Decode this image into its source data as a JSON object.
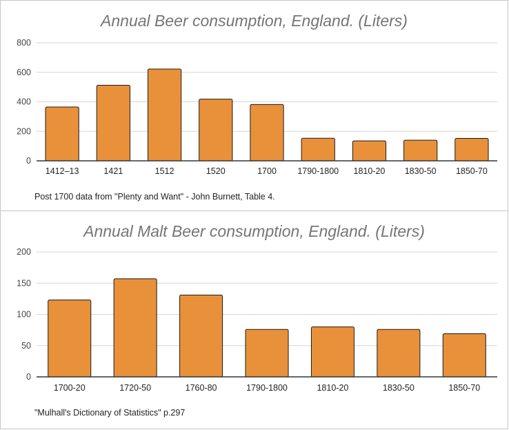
{
  "chart_data": [
    {
      "type": "bar",
      "title": "Annual Beer consumption, England. (Liters)",
      "categories": [
        "1412–13",
        "1421",
        "1512",
        "1520",
        "1700",
        "1790-1800",
        "1810-20",
        "1830-50",
        "1850-70"
      ],
      "values": [
        365,
        512,
        622,
        418,
        382,
        153,
        135,
        140,
        152
      ],
      "yticks": [
        0,
        200,
        400,
        600,
        800
      ],
      "ylim": [
        0,
        800
      ],
      "grid": true,
      "legend": "none",
      "bar_color": "#e8913a",
      "note": "Post 1700 data from \"Plenty and Want\" -  John Burnett, Table 4."
    },
    {
      "type": "bar",
      "title": "Annual Malt Beer consumption, England. (Liters)",
      "categories": [
        "1700-20",
        "1720-50",
        "1760-80",
        "1790-1800",
        "1810-20",
        "1830-50",
        "1850-70"
      ],
      "values": [
        123,
        157,
        131,
        76,
        80,
        76,
        69
      ],
      "yticks": [
        0,
        50,
        100,
        150,
        200
      ],
      "ylim": [
        0,
        200
      ],
      "grid": true,
      "legend": "none",
      "bar_color": "#e8913a",
      "note": "\"Mulhall's Dictionary of Statistics\" p.297"
    }
  ]
}
